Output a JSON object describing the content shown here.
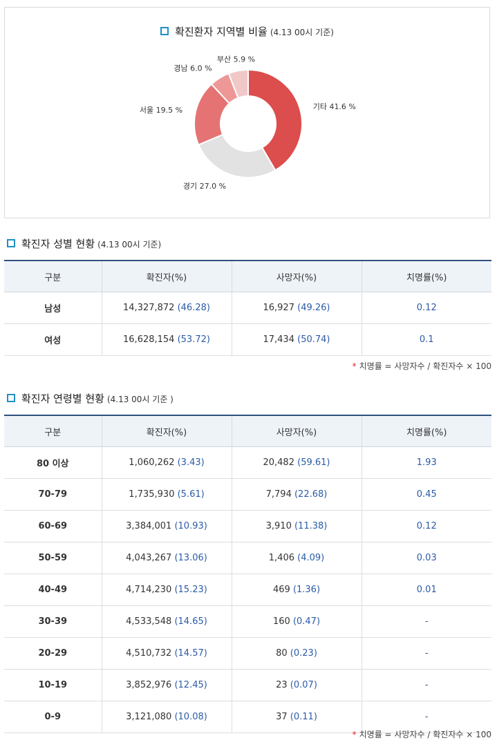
{
  "chart": {
    "title": "확진환자 지역별 비율",
    "subtitle": "(4.13 00시 기준)"
  },
  "chart_data": {
    "type": "pie",
    "donut": true,
    "slices": [
      {
        "label": "기타",
        "value": 41.6,
        "display": "기타 41.6 %",
        "color": "#dc4d4d"
      },
      {
        "label": "경기",
        "value": 27.0,
        "display": "경기 27.0 %",
        "color": "#e2e2e2"
      },
      {
        "label": "서울",
        "value": 19.5,
        "display": "서울 19.5 %",
        "color": "#e57373"
      },
      {
        "label": "경남",
        "value": 6.0,
        "display": "경남 6.0 %",
        "color": "#ee9797"
      },
      {
        "label": "부산",
        "value": 5.9,
        "display": "부산 5.9 %",
        "color": "#f1c8c8"
      }
    ]
  },
  "gender": {
    "title": "확진자 성별 현황",
    "subtitle": "(4.13 00시 기준)",
    "headers": [
      "구분",
      "확진자(%)",
      "사망자(%)",
      "치명률(%)"
    ],
    "rows": [
      {
        "group": "남성",
        "cases": "14,327,872",
        "cases_pct": "(46.28)",
        "deaths": "16,927",
        "deaths_pct": "(49.26)",
        "rate": "0.12"
      },
      {
        "group": "여성",
        "cases": "16,628,154",
        "cases_pct": "(53.72)",
        "deaths": "17,434",
        "deaths_pct": "(50.74)",
        "rate": "0.1"
      }
    ],
    "footnote": "치명률 = 사망자수 / 확진자수 × 100"
  },
  "age": {
    "title": "확진자 연령별 현황",
    "subtitle": "(4.13 00시 기준 )",
    "headers": [
      "구분",
      "확진자(%)",
      "사망자(%)",
      "치명률(%)"
    ],
    "rows": [
      {
        "group": "80 이상",
        "cases": "1,060,262",
        "cases_pct": "(3.43)",
        "deaths": "20,482",
        "deaths_pct": "(59.61)",
        "rate": "1.93"
      },
      {
        "group": "70-79",
        "cases": "1,735,930",
        "cases_pct": "(5.61)",
        "deaths": "7,794",
        "deaths_pct": "(22.68)",
        "rate": "0.45"
      },
      {
        "group": "60-69",
        "cases": "3,384,001",
        "cases_pct": "(10.93)",
        "deaths": "3,910",
        "deaths_pct": "(11.38)",
        "rate": "0.12"
      },
      {
        "group": "50-59",
        "cases": "4,043,267",
        "cases_pct": "(13.06)",
        "deaths": "1,406",
        "deaths_pct": "(4.09)",
        "rate": "0.03"
      },
      {
        "group": "40-49",
        "cases": "4,714,230",
        "cases_pct": "(15.23)",
        "deaths": "469",
        "deaths_pct": "(1.36)",
        "rate": "0.01"
      },
      {
        "group": "30-39",
        "cases": "4,533,548",
        "cases_pct": "(14.65)",
        "deaths": "160",
        "deaths_pct": "(0.47)",
        "rate": "-"
      },
      {
        "group": "20-29",
        "cases": "4,510,732",
        "cases_pct": "(14.57)",
        "deaths": "80",
        "deaths_pct": "(0.23)",
        "rate": "-"
      },
      {
        "group": "10-19",
        "cases": "3,852,976",
        "cases_pct": "(12.45)",
        "deaths": "23",
        "deaths_pct": "(0.07)",
        "rate": "-"
      },
      {
        "group": "0-9",
        "cases": "3,121,080",
        "cases_pct": "(10.08)",
        "deaths": "37",
        "deaths_pct": "(0.11)",
        "rate": "-"
      }
    ],
    "footnote": "치명률 = 사망자수 / 확진자수 × 100"
  }
}
